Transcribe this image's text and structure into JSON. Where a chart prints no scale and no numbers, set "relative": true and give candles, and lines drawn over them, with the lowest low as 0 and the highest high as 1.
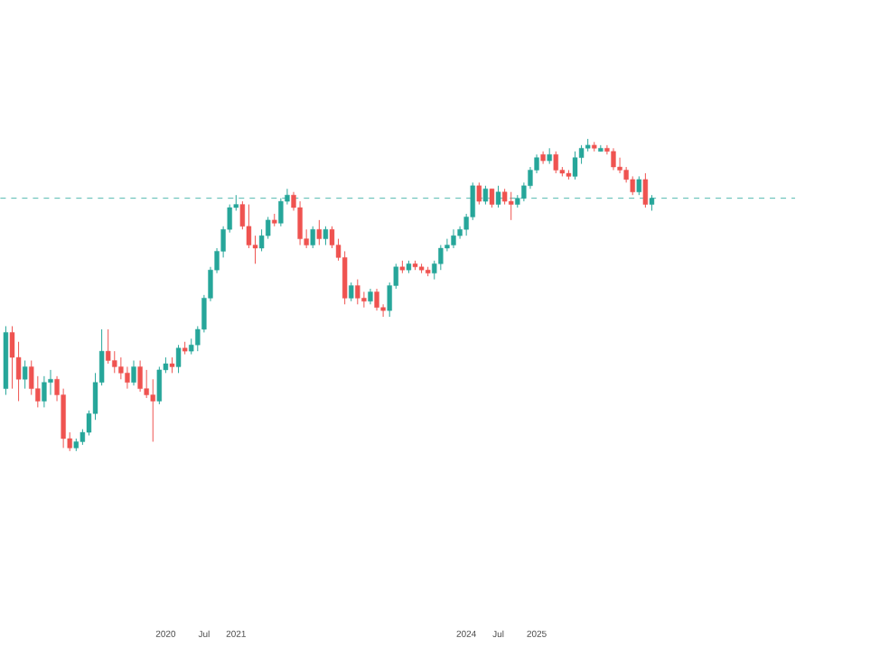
{
  "chart_data": {
    "type": "candlestick",
    "relative": true,
    "categories": [
      null,
      null,
      null,
      null,
      null,
      null,
      null,
      null,
      null,
      null,
      null,
      null,
      null,
      null,
      null,
      null,
      null,
      null,
      null,
      null,
      null,
      null,
      null,
      null,
      null,
      "2020",
      null,
      null,
      null,
      null,
      null,
      "Jul",
      null,
      null,
      null,
      null,
      "2021",
      null,
      null,
      null,
      null,
      null,
      null,
      null,
      null,
      null,
      null,
      null,
      null,
      null,
      null,
      null,
      null,
      null,
      null,
      null,
      null,
      null,
      null,
      null,
      null,
      null,
      null,
      null,
      null,
      null,
      null,
      null,
      null,
      null,
      null,
      null,
      "2024",
      null,
      null,
      null,
      null,
      "Jul",
      null,
      null,
      null,
      null,
      null,
      "2025",
      null,
      null,
      null,
      null,
      null,
      null,
      null,
      null,
      null,
      null,
      null,
      null,
      null,
      null,
      null,
      null,
      null,
      null
    ],
    "ohlc": [
      [
        0.2,
        0.4,
        0.18,
        0.38
      ],
      [
        0.38,
        0.4,
        0.2,
        0.3
      ],
      [
        0.3,
        0.35,
        0.16,
        0.23
      ],
      [
        0.23,
        0.29,
        0.2,
        0.27
      ],
      [
        0.27,
        0.29,
        0.18,
        0.2
      ],
      [
        0.2,
        0.24,
        0.14,
        0.16
      ],
      [
        0.16,
        0.24,
        0.14,
        0.22
      ],
      [
        0.22,
        0.26,
        0.18,
        0.23
      ],
      [
        0.23,
        0.24,
        0.16,
        0.18
      ],
      [
        0.18,
        0.2,
        0.01,
        0.04
      ],
      [
        0.04,
        0.06,
        0,
        0.01
      ],
      [
        0.01,
        0.04,
        0,
        0.03
      ],
      [
        0.03,
        0.07,
        0.02,
        0.06
      ],
      [
        0.06,
        0.13,
        0.05,
        0.12
      ],
      [
        0.12,
        0.25,
        0.1,
        0.22
      ],
      [
        0.22,
        0.39,
        0.21,
        0.32
      ],
      [
        0.32,
        0.39,
        0.28,
        0.29
      ],
      [
        0.29,
        0.32,
        0.25,
        0.27
      ],
      [
        0.27,
        0.3,
        0.23,
        0.25
      ],
      [
        0.25,
        0.27,
        0.2,
        0.22
      ],
      [
        0.22,
        0.29,
        0.21,
        0.27
      ],
      [
        0.27,
        0.29,
        0.19,
        0.2
      ],
      [
        0.2,
        0.26,
        0.17,
        0.18
      ],
      [
        0.18,
        0.23,
        0.03,
        0.16
      ],
      [
        0.16,
        0.27,
        0.15,
        0.26
      ],
      [
        0.26,
        0.3,
        0.25,
        0.28
      ],
      [
        0.28,
        0.3,
        0.25,
        0.27
      ],
      [
        0.27,
        0.34,
        0.25,
        0.33
      ],
      [
        0.33,
        0.35,
        0.31,
        0.32
      ],
      [
        0.32,
        0.36,
        0.31,
        0.34
      ],
      [
        0.34,
        0.4,
        0.32,
        0.39
      ],
      [
        0.39,
        0.5,
        0.38,
        0.49
      ],
      [
        0.49,
        0.59,
        0.48,
        0.58
      ],
      [
        0.58,
        0.65,
        0.57,
        0.64
      ],
      [
        0.64,
        0.72,
        0.62,
        0.71
      ],
      [
        0.71,
        0.79,
        0.7,
        0.78
      ],
      [
        0.78,
        0.82,
        0.77,
        0.79
      ],
      [
        0.79,
        0.8,
        0.71,
        0.72
      ],
      [
        0.72,
        0.79,
        0.65,
        0.66
      ],
      [
        0.66,
        0.69,
        0.6,
        0.65
      ],
      [
        0.65,
        0.71,
        0.64,
        0.69
      ],
      [
        0.69,
        0.75,
        0.68,
        0.74
      ],
      [
        0.74,
        0.76,
        0.72,
        0.73
      ],
      [
        0.73,
        0.81,
        0.72,
        0.8
      ],
      [
        0.8,
        0.84,
        0.79,
        0.82
      ],
      [
        0.82,
        0.83,
        0.77,
        0.78
      ],
      [
        0.78,
        0.8,
        0.66,
        0.68
      ],
      [
        0.68,
        0.71,
        0.65,
        0.66
      ],
      [
        0.66,
        0.72,
        0.65,
        0.71
      ],
      [
        0.71,
        0.74,
        0.66,
        0.68
      ],
      [
        0.68,
        0.72,
        0.66,
        0.71
      ],
      [
        0.71,
        0.72,
        0.65,
        0.66
      ],
      [
        0.66,
        0.68,
        0.61,
        0.62
      ],
      [
        0.62,
        0.64,
        0.47,
        0.49
      ],
      [
        0.49,
        0.54,
        0.48,
        0.53
      ],
      [
        0.53,
        0.55,
        0.47,
        0.49
      ],
      [
        0.49,
        0.51,
        0.46,
        0.48
      ],
      [
        0.48,
        0.52,
        0.47,
        0.51
      ],
      [
        0.51,
        0.52,
        0.45,
        0.46
      ],
      [
        0.46,
        0.47,
        0.43,
        0.45
      ],
      [
        0.45,
        0.54,
        0.43,
        0.53
      ],
      [
        0.53,
        0.6,
        0.52,
        0.59
      ],
      [
        0.59,
        0.61,
        0.57,
        0.58
      ],
      [
        0.58,
        0.61,
        0.57,
        0.6
      ],
      [
        0.6,
        0.61,
        0.58,
        0.59
      ],
      [
        0.59,
        0.6,
        0.57,
        0.58
      ],
      [
        0.58,
        0.59,
        0.56,
        0.57
      ],
      [
        0.57,
        0.61,
        0.55,
        0.6
      ],
      [
        0.6,
        0.66,
        0.58,
        0.65
      ],
      [
        0.65,
        0.68,
        0.64,
        0.66
      ],
      [
        0.66,
        0.71,
        0.65,
        0.69
      ],
      [
        0.69,
        0.72,
        0.68,
        0.71
      ],
      [
        0.71,
        0.76,
        0.69,
        0.75
      ],
      [
        0.75,
        0.86,
        0.74,
        0.85
      ],
      [
        0.85,
        0.86,
        0.79,
        0.8
      ],
      [
        0.8,
        0.85,
        0.79,
        0.84
      ],
      [
        0.84,
        0.84,
        0.78,
        0.79
      ],
      [
        0.79,
        0.85,
        0.78,
        0.83
      ],
      [
        0.83,
        0.84,
        0.79,
        0.8
      ],
      [
        0.8,
        0.83,
        0.74,
        0.79
      ],
      [
        0.79,
        0.82,
        0.78,
        0.81
      ],
      [
        0.81,
        0.86,
        0.8,
        0.85
      ],
      [
        0.85,
        0.91,
        0.84,
        0.9
      ],
      [
        0.9,
        0.95,
        0.89,
        0.94
      ],
      [
        0.95,
        0.96,
        0.92,
        0.93
      ],
      [
        0.93,
        0.97,
        0.92,
        0.95
      ],
      [
        0.95,
        0.96,
        0.89,
        0.9
      ],
      [
        0.9,
        0.91,
        0.88,
        0.89
      ],
      [
        0.89,
        0.9,
        0.87,
        0.88
      ],
      [
        0.88,
        0.96,
        0.87,
        0.94
      ],
      [
        0.94,
        0.98,
        0.92,
        0.97
      ],
      [
        0.97,
        1.0,
        0.96,
        0.98
      ],
      [
        0.98,
        0.99,
        0.96,
        0.97
      ],
      [
        0.96,
        0.98,
        0.96,
        0.97
      ],
      [
        0.97,
        0.98,
        0.95,
        0.96
      ],
      [
        0.96,
        0.97,
        0.9,
        0.91
      ],
      [
        0.91,
        0.94,
        0.89,
        0.9
      ],
      [
        0.9,
        0.91,
        0.86,
        0.87
      ],
      [
        0.87,
        0.88,
        0.82,
        0.83
      ],
      [
        0.83,
        0.88,
        0.82,
        0.87
      ],
      [
        0.87,
        0.89,
        0.78,
        0.79
      ],
      [
        0.79,
        0.82,
        0.77,
        0.81
      ]
    ],
    "ref_lines": [
      {
        "axis": "y",
        "value": 0.81,
        "color": "#26a69a",
        "line_style": "dashed"
      }
    ]
  }
}
